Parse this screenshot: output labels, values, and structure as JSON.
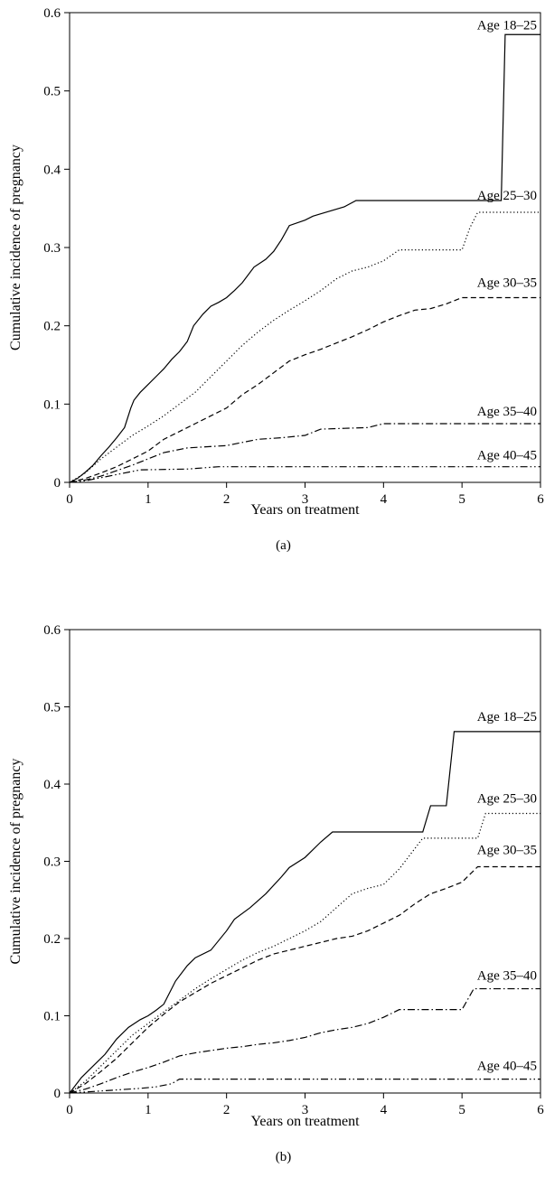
{
  "chart_data": [
    {
      "type": "line",
      "panel_label": "(a)",
      "xlabel": "Years on treatment",
      "ylabel": "Cumulative incidence of pregnancy",
      "xlim": [
        0,
        6
      ],
      "ylim": [
        0,
        0.6
      ],
      "xticks": [
        "0",
        "1",
        "2",
        "3",
        "4",
        "5",
        "6"
      ],
      "yticks": [
        "0",
        "0.1",
        "0.2",
        "0.3",
        "0.4",
        "0.5",
        "0.6"
      ],
      "grid": false,
      "legend": "inline-right",
      "series": [
        {
          "name": "Age 18–25",
          "dash": "solid",
          "x": [
            0,
            0.1,
            0.2,
            0.3,
            0.4,
            0.5,
            0.6,
            0.7,
            0.78,
            0.82,
            0.9,
            1.0,
            1.1,
            1.2,
            1.3,
            1.4,
            1.5,
            1.58,
            1.7,
            1.8,
            1.9,
            2.0,
            2.1,
            2.2,
            2.35,
            2.5,
            2.6,
            2.7,
            2.8,
            3.0,
            3.1,
            3.2,
            3.5,
            3.65,
            5.5,
            5.55,
            6.0
          ],
          "y": [
            0,
            0.005,
            0.013,
            0.022,
            0.034,
            0.045,
            0.057,
            0.07,
            0.095,
            0.105,
            0.115,
            0.125,
            0.135,
            0.145,
            0.157,
            0.167,
            0.18,
            0.2,
            0.215,
            0.225,
            0.23,
            0.236,
            0.245,
            0.255,
            0.275,
            0.285,
            0.295,
            0.31,
            0.328,
            0.335,
            0.34,
            0.343,
            0.352,
            0.36,
            0.36,
            0.572,
            0.572
          ]
        },
        {
          "name": "Age 25–30",
          "dash": "dotted",
          "x": [
            0,
            0.2,
            0.4,
            0.6,
            0.8,
            1.0,
            1.2,
            1.4,
            1.6,
            1.8,
            2.0,
            2.2,
            2.4,
            2.6,
            2.8,
            3.0,
            3.2,
            3.4,
            3.6,
            3.8,
            4.0,
            4.1,
            4.2,
            5.0,
            5.1,
            5.2,
            6.0
          ],
          "y": [
            0,
            0.012,
            0.03,
            0.045,
            0.06,
            0.072,
            0.085,
            0.1,
            0.115,
            0.135,
            0.155,
            0.175,
            0.192,
            0.207,
            0.22,
            0.232,
            0.245,
            0.26,
            0.27,
            0.275,
            0.283,
            0.29,
            0.297,
            0.297,
            0.325,
            0.345,
            0.345
          ]
        },
        {
          "name": "Age 30–35",
          "dash": "dashed",
          "x": [
            0,
            0.2,
            0.4,
            0.6,
            0.8,
            1.0,
            1.2,
            1.4,
            1.6,
            1.8,
            2.0,
            2.2,
            2.4,
            2.6,
            2.8,
            3.0,
            3.2,
            3.4,
            3.6,
            3.8,
            4.0,
            4.2,
            4.4,
            4.6,
            4.8,
            5.0,
            6.0
          ],
          "y": [
            0,
            0.005,
            0.012,
            0.02,
            0.03,
            0.04,
            0.055,
            0.065,
            0.075,
            0.085,
            0.095,
            0.112,
            0.125,
            0.14,
            0.155,
            0.163,
            0.17,
            0.178,
            0.186,
            0.195,
            0.205,
            0.213,
            0.22,
            0.222,
            0.228,
            0.236,
            0.236
          ]
        },
        {
          "name": "Age 35–40",
          "dash": "dashdot",
          "x": [
            0,
            0.2,
            0.4,
            0.6,
            0.8,
            1.0,
            1.2,
            1.5,
            2.0,
            2.4,
            2.7,
            3.0,
            3.2,
            3.8,
            4.0,
            6.0
          ],
          "y": [
            0,
            0.003,
            0.008,
            0.015,
            0.022,
            0.03,
            0.038,
            0.044,
            0.047,
            0.055,
            0.057,
            0.06,
            0.068,
            0.07,
            0.075,
            0.075
          ]
        },
        {
          "name": "Age 40–45",
          "dash": "dashdotdot",
          "x": [
            0,
            0.2,
            0.4,
            0.6,
            0.9,
            1.5,
            1.9,
            6.0
          ],
          "y": [
            0,
            0.002,
            0.006,
            0.01,
            0.016,
            0.017,
            0.02,
            0.02
          ]
        }
      ]
    },
    {
      "type": "line",
      "panel_label": "(b)",
      "xlabel": "Years on treatment",
      "ylabel": "Cumulative incidence of pregnancy",
      "xlim": [
        0,
        6
      ],
      "ylim": [
        0,
        0.6
      ],
      "xticks": [
        "0",
        "1",
        "2",
        "3",
        "4",
        "5",
        "6"
      ],
      "yticks": [
        "0",
        "0.1",
        "0.2",
        "0.3",
        "0.4",
        "0.5",
        "0.6"
      ],
      "grid": false,
      "legend": "inline-right",
      "series": [
        {
          "name": "Age 18–25",
          "dash": "solid",
          "x": [
            0,
            0.15,
            0.3,
            0.45,
            0.6,
            0.75,
            0.9,
            1.0,
            1.1,
            1.2,
            1.35,
            1.5,
            1.6,
            1.8,
            2.0,
            2.1,
            2.3,
            2.5,
            2.7,
            2.8,
            3.0,
            3.2,
            3.35,
            4.5,
            4.6,
            4.8,
            4.9,
            6.0
          ],
          "y": [
            0,
            0.02,
            0.035,
            0.05,
            0.07,
            0.085,
            0.095,
            0.1,
            0.107,
            0.115,
            0.145,
            0.165,
            0.175,
            0.185,
            0.21,
            0.225,
            0.24,
            0.258,
            0.28,
            0.292,
            0.305,
            0.325,
            0.338,
            0.338,
            0.372,
            0.372,
            0.468,
            0.468
          ]
        },
        {
          "name": "Age 25–30",
          "dash": "dotted",
          "x": [
            0,
            0.2,
            0.4,
            0.6,
            0.8,
            1.0,
            1.2,
            1.4,
            1.6,
            1.8,
            2.0,
            2.2,
            2.4,
            2.6,
            2.8,
            3.0,
            3.2,
            3.4,
            3.6,
            3.8,
            4.0,
            4.2,
            4.5,
            5.2,
            5.3,
            6.0
          ],
          "y": [
            0,
            0.015,
            0.035,
            0.055,
            0.075,
            0.09,
            0.105,
            0.12,
            0.135,
            0.148,
            0.16,
            0.172,
            0.182,
            0.19,
            0.2,
            0.21,
            0.222,
            0.24,
            0.258,
            0.265,
            0.27,
            0.29,
            0.33,
            0.33,
            0.362,
            0.362
          ]
        },
        {
          "name": "Age 30–35",
          "dash": "dashed",
          "x": [
            0,
            0.2,
            0.4,
            0.6,
            0.8,
            1.0,
            1.2,
            1.4,
            1.6,
            1.8,
            2.0,
            2.2,
            2.4,
            2.6,
            2.8,
            3.0,
            3.2,
            3.4,
            3.6,
            3.8,
            4.0,
            4.2,
            4.4,
            4.6,
            4.8,
            5.0,
            5.2,
            6.0
          ],
          "y": [
            0,
            0.012,
            0.028,
            0.045,
            0.065,
            0.085,
            0.102,
            0.118,
            0.13,
            0.142,
            0.152,
            0.162,
            0.172,
            0.18,
            0.185,
            0.19,
            0.195,
            0.2,
            0.203,
            0.21,
            0.22,
            0.23,
            0.245,
            0.258,
            0.265,
            0.273,
            0.293,
            0.293
          ]
        },
        {
          "name": "Age 35–40",
          "dash": "dashdot",
          "x": [
            0,
            0.2,
            0.4,
            0.6,
            0.8,
            1.0,
            1.2,
            1.4,
            1.6,
            1.8,
            2.0,
            2.2,
            2.4,
            2.6,
            2.8,
            3.0,
            3.2,
            3.4,
            3.6,
            3.8,
            4.0,
            4.2,
            5.0,
            5.15,
            6.0
          ],
          "y": [
            0,
            0.005,
            0.012,
            0.02,
            0.027,
            0.033,
            0.04,
            0.048,
            0.052,
            0.055,
            0.058,
            0.06,
            0.063,
            0.065,
            0.068,
            0.072,
            0.078,
            0.082,
            0.085,
            0.09,
            0.098,
            0.108,
            0.108,
            0.135,
            0.135
          ]
        },
        {
          "name": "Age 40–45",
          "dash": "dashdotdot",
          "x": [
            0,
            0.3,
            0.6,
            0.9,
            1.1,
            1.3,
            1.4,
            6.0
          ],
          "y": [
            0,
            0.002,
            0.004,
            0.006,
            0.008,
            0.012,
            0.018,
            0.018
          ]
        }
      ]
    }
  ]
}
